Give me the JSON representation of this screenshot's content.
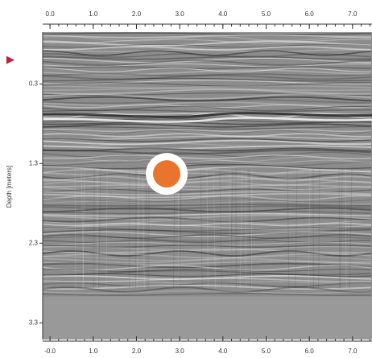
{
  "chart_data": {
    "type": "radargram",
    "y_label": "Depth [meters]",
    "xlim": [
      -0.17,
      7.45
    ],
    "ylim": [
      -0.35,
      3.51
    ],
    "xticks_top": [
      {
        "value": 0,
        "label": "0.0"
      },
      {
        "value": 1,
        "label": "1.0"
      },
      {
        "value": 2,
        "label": "2.0"
      },
      {
        "value": 3,
        "label": "3.0"
      },
      {
        "value": 4,
        "label": "4.0"
      },
      {
        "value": 5,
        "label": "5.0"
      },
      {
        "value": 6,
        "label": "6.0"
      },
      {
        "value": 7,
        "label": "7.0"
      }
    ],
    "xticks_bottom": [
      {
        "value": 0,
        "label": "-0.0"
      },
      {
        "value": 1,
        "label": "1.0"
      },
      {
        "value": 2,
        "label": "2.0"
      },
      {
        "value": 3,
        "label": "3.0"
      },
      {
        "value": 4,
        "label": "4.0"
      },
      {
        "value": 5,
        "label": "5.0"
      },
      {
        "value": 6,
        "label": "6.0"
      },
      {
        "value": 7,
        "label": "7.0"
      }
    ],
    "yticks": [
      0.3,
      1.3,
      2.3,
      3.3
    ],
    "target": {
      "x": 2.7,
      "y": 1.43,
      "color": "#e8742e"
    },
    "surface_marker": {
      "y": 0.0,
      "color": "#c0203a"
    }
  }
}
